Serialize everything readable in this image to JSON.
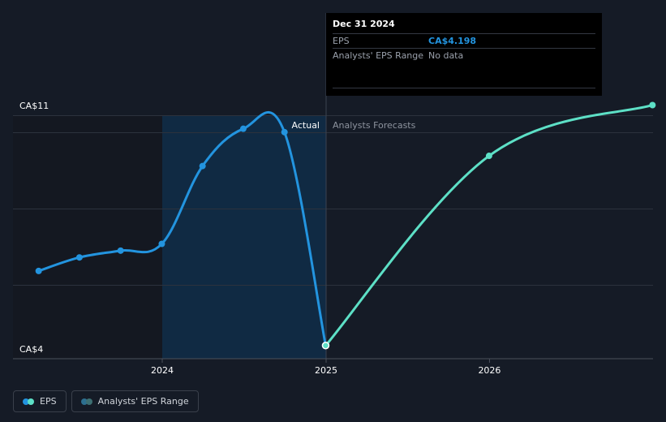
{
  "chart_data": {
    "type": "line",
    "y_tick_labels": [
      "CA$11",
      "CA$4"
    ],
    "ylim": [
      4,
      11
    ],
    "x_tick_labels": [
      "2024",
      "2025",
      "2026"
    ],
    "region_labels": {
      "actual": "Actual",
      "forecast": "Analysts Forecasts"
    },
    "series": [
      {
        "name": "EPS",
        "kind": "actual",
        "color": "#2394df",
        "points": [
          {
            "x": "2023-03-31",
            "y": 6.4
          },
          {
            "x": "2023-06-30",
            "y": 6.8
          },
          {
            "x": "2023-09-30",
            "y": 7.0
          },
          {
            "x": "2023-12-31",
            "y": 7.2
          },
          {
            "x": "2024-03-31",
            "y": 9.5
          },
          {
            "x": "2024-06-30",
            "y": 10.6
          },
          {
            "x": "2024-09-30",
            "y": 10.5
          },
          {
            "x": "2024-12-31",
            "y": 4.198
          }
        ]
      },
      {
        "name": "EPS",
        "kind": "forecast",
        "color": "#5de0c6",
        "points": [
          {
            "x": "2024-12-31",
            "y": 4.198
          },
          {
            "x": "2025-12-31",
            "y": 9.8
          },
          {
            "x": "2026-12-31",
            "y": 11.3
          }
        ]
      }
    ],
    "grid": true
  },
  "tooltip": {
    "date": "Dec 31 2024",
    "rows": [
      {
        "label": "EPS",
        "value": "CA$4.198"
      },
      {
        "label": "Analysts' EPS Range",
        "value": "No data"
      }
    ]
  },
  "legend": [
    {
      "label": "EPS",
      "colors": [
        "#2394df",
        "#5de0c6"
      ]
    },
    {
      "label": "Analysts' EPS Range",
      "colors": [
        "#2d6f8f",
        "#3d6f72"
      ]
    }
  ]
}
